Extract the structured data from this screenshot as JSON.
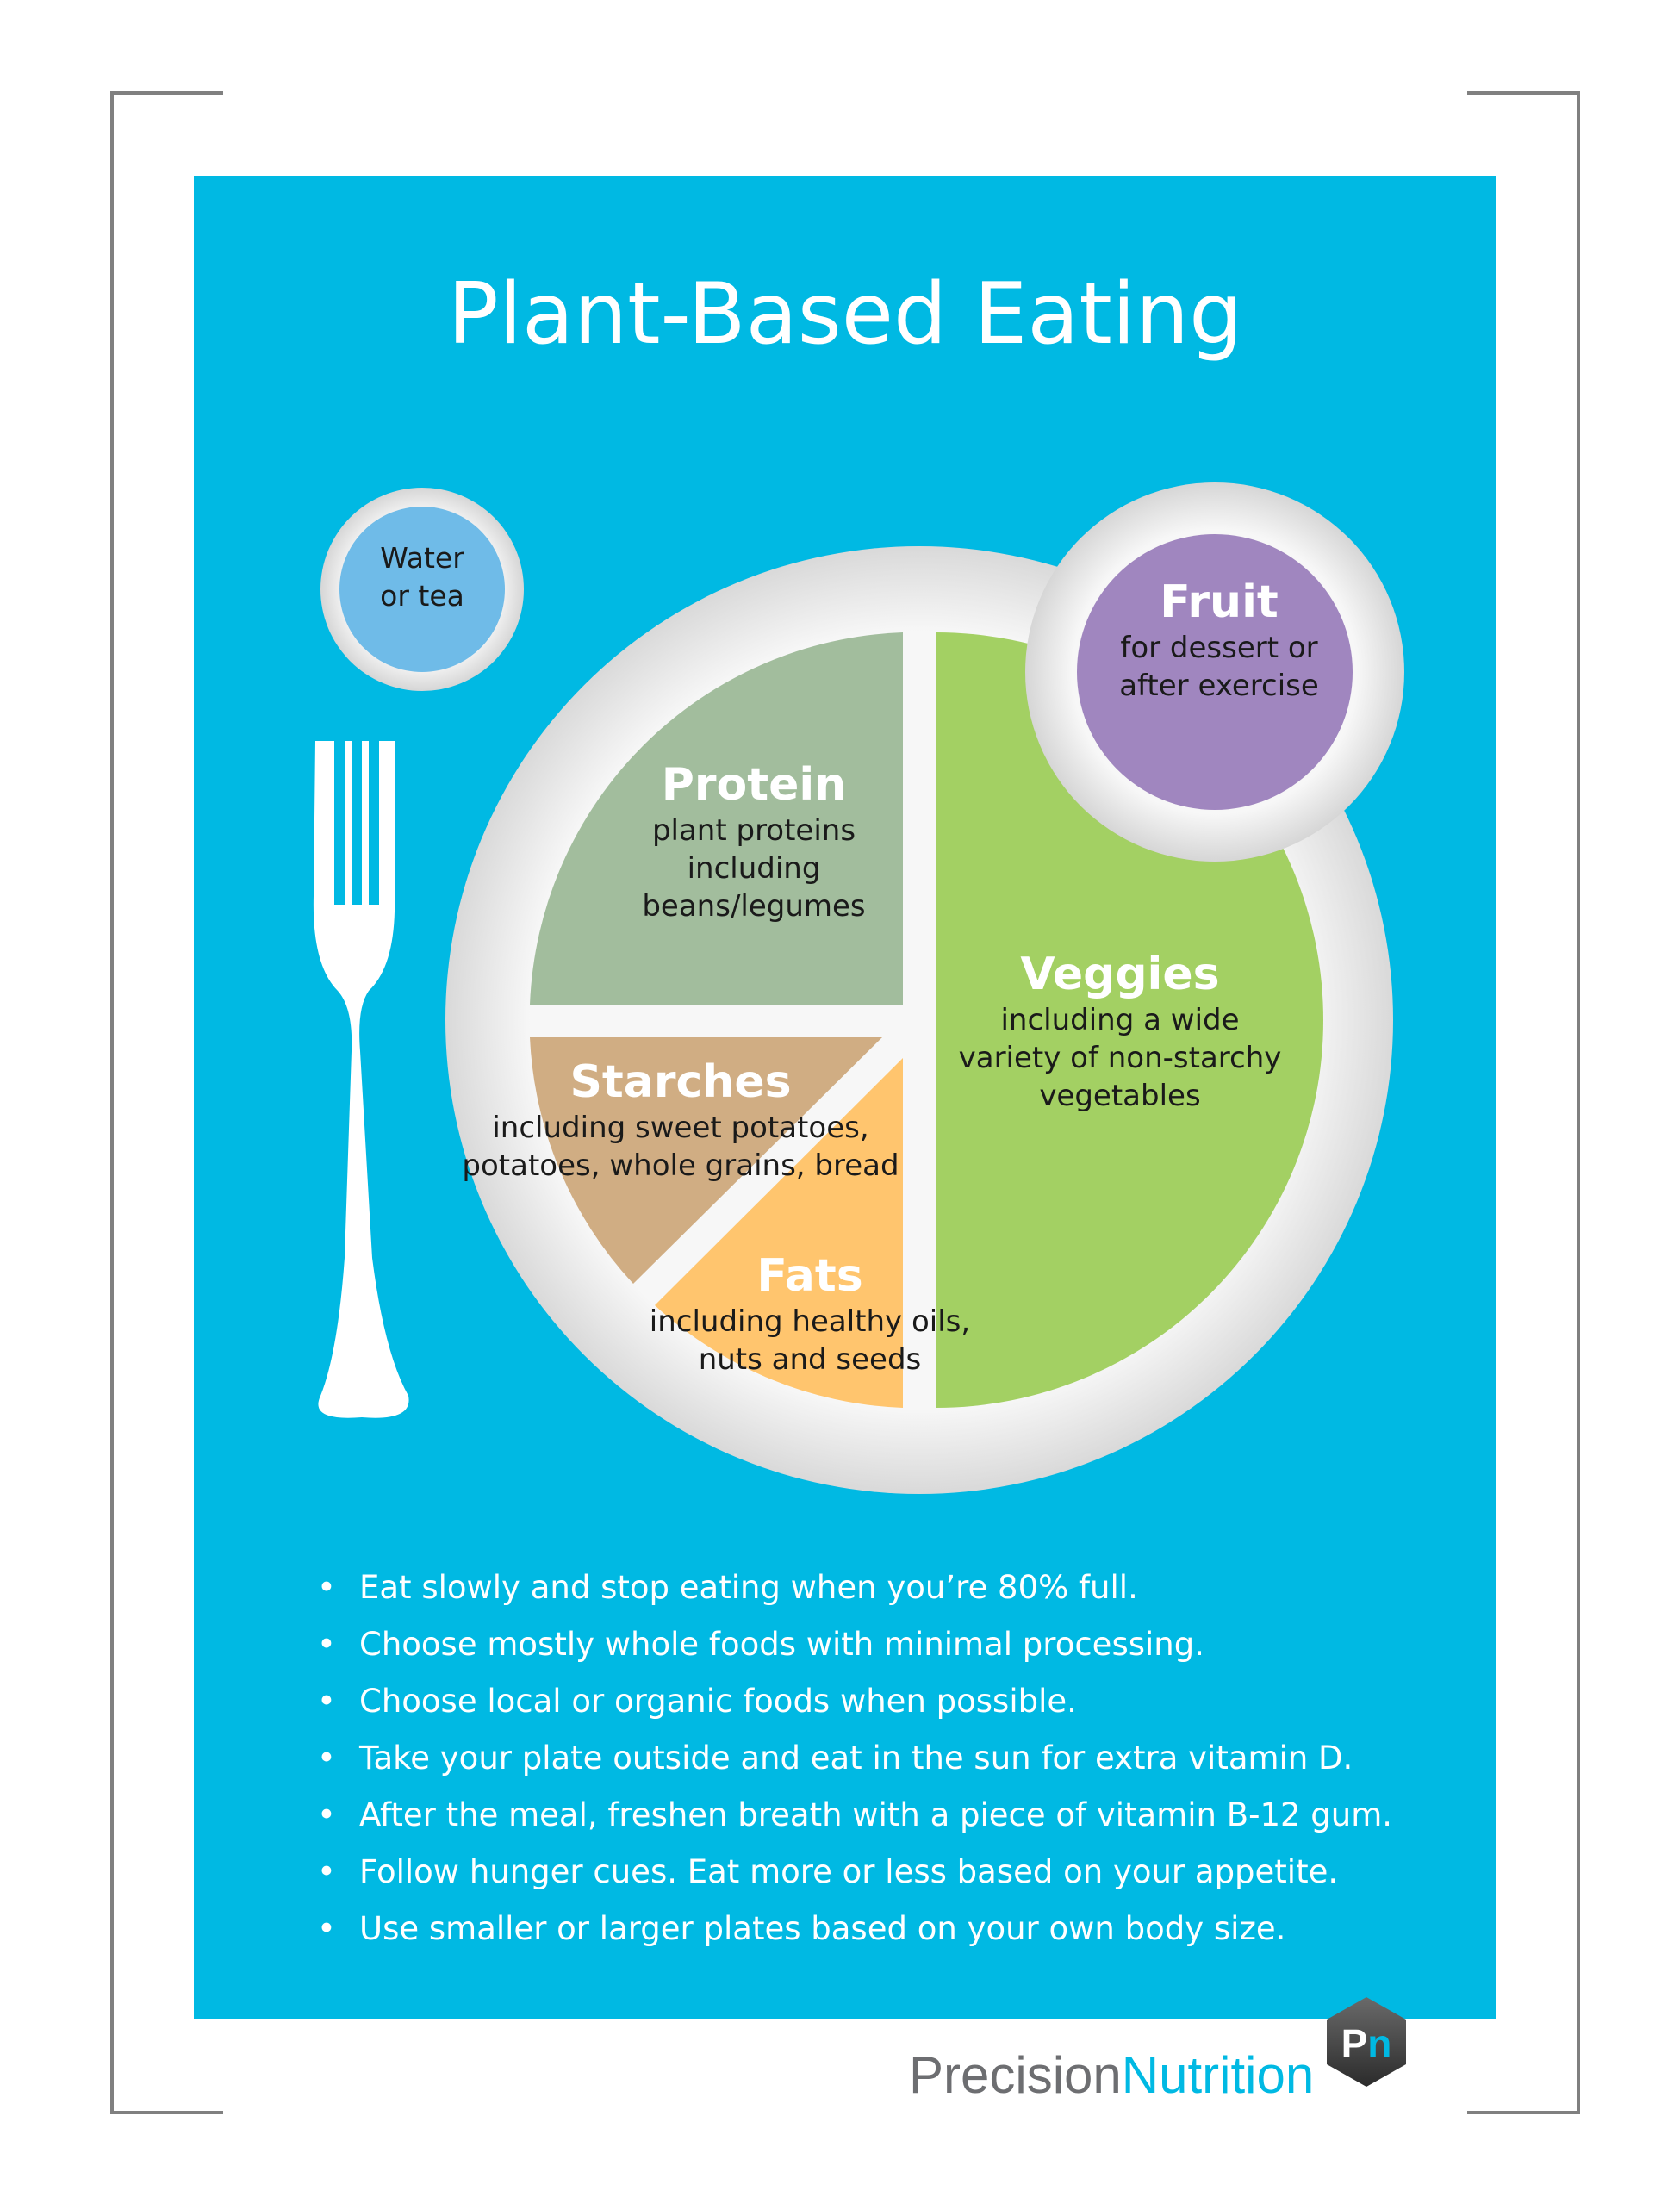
{
  "title": "Plant-Based Eating",
  "cup": {
    "line1": "Water",
    "line2": "or tea"
  },
  "plate": {
    "fruit": {
      "heading": "Fruit",
      "lines": [
        "for dessert or",
        "after exercise"
      ]
    },
    "protein": {
      "heading": "Protein",
      "lines": [
        "plant proteins",
        "including",
        "beans/legumes"
      ]
    },
    "veggies": {
      "heading": "Veggies",
      "lines": [
        "including a wide",
        "variety of non-starchy",
        "vegetables"
      ]
    },
    "starches": {
      "heading": "Starches",
      "lines": [
        "including sweet potatoes,",
        "potatoes, whole grains, bread"
      ]
    },
    "fats": {
      "heading": "Fats",
      "lines": [
        "including healthy oils,",
        "nuts and seeds"
      ]
    }
  },
  "tips": [
    "Eat slowly and stop eating when you’re 80% full.",
    "Choose mostly whole foods with minimal processing.",
    "Choose local or organic foods when possible.",
    "Take your plate outside and eat in the sun for extra vitamin D.",
    "After the meal, freshen breath with a piece of vitamin B-12 gum.",
    "Follow hunger cues. Eat more or less based on your appetite.",
    "Use smaller or larger plates based on your own body size."
  ],
  "logo": {
    "mark": "Pn",
    "brand_part1": "Precision",
    "brand_part2": "Nutrition"
  },
  "colors": {
    "background": "#00b9e3",
    "protein": "#a2bd9d",
    "veggies": "#a3d063",
    "starches": "#d0ad83",
    "fats": "#ffc56e",
    "fruit": "#a086bf",
    "water": "#6fbbe8",
    "plate": "#e8e8e8"
  },
  "icons": [
    "fork-icon",
    "cup-icon",
    "plate-icon",
    "logo-hexagon-icon"
  ]
}
